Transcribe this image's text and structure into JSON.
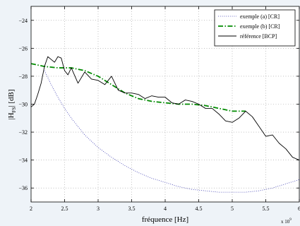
{
  "chart_data": {
    "type": "line",
    "xlabel": "fréquence [Hz]",
    "ylabel": "|H_FS| [dB]",
    "ylabel_main": "|H",
    "ylabel_sub": "FS",
    "ylabel_unit": "| [dB]",
    "x_exponent_label": "x 10",
    "x_exponent_power": "9",
    "xlim": [
      2,
      6
    ],
    "ylim": [
      -37,
      -23
    ],
    "grid": true,
    "legend_position": "top-right",
    "xticks": [
      {
        "value": 2,
        "label": "2"
      },
      {
        "value": 2.5,
        "label": "2.5"
      },
      {
        "value": 3,
        "label": "3"
      },
      {
        "value": 3.5,
        "label": "3.5"
      },
      {
        "value": 4,
        "label": "4"
      },
      {
        "value": 4.5,
        "label": "4.5"
      },
      {
        "value": 5,
        "label": "5"
      },
      {
        "value": 5.5,
        "label": "5.5"
      },
      {
        "value": 6,
        "label": "6"
      }
    ],
    "yticks": [
      {
        "value": -36,
        "label": "−36"
      },
      {
        "value": -34,
        "label": "−34"
      },
      {
        "value": -32,
        "label": "−32"
      },
      {
        "value": -30,
        "label": "−30"
      },
      {
        "value": -28,
        "label": "−28"
      },
      {
        "value": -26,
        "label": "−26"
      },
      {
        "value": -24,
        "label": "−24"
      }
    ],
    "series": [
      {
        "name": "exemple (a) [CR]",
        "color": "#3a3ab0",
        "style": "dotted",
        "x": [
          2.2,
          2.3,
          2.4,
          2.5,
          2.6,
          2.8,
          3.0,
          3.2,
          3.4,
          3.6,
          3.8,
          4.0,
          4.2,
          4.4,
          4.6,
          4.8,
          5.0,
          5.2,
          5.4,
          5.6,
          5.8,
          6.0
        ],
        "y": [
          -27.6,
          -28.6,
          -29.5,
          -30.3,
          -31.0,
          -32.2,
          -33.1,
          -33.8,
          -34.4,
          -34.9,
          -35.3,
          -35.6,
          -35.9,
          -36.1,
          -36.2,
          -36.3,
          -36.3,
          -36.3,
          -36.2,
          -36.0,
          -35.7,
          -35.4
        ]
      },
      {
        "name": "exemple (b) [CR]",
        "color": "#008a00",
        "style": "dashdot",
        "x": [
          2.0,
          2.2,
          2.4,
          2.6,
          2.8,
          3.0,
          3.2,
          3.4,
          3.6,
          3.8,
          4.0,
          4.2,
          4.4,
          4.6,
          4.8,
          5.0,
          5.1,
          5.2
        ],
        "y": [
          -27.1,
          -27.3,
          -27.4,
          -27.4,
          -27.6,
          -28.0,
          -28.6,
          -29.2,
          -29.6,
          -29.8,
          -29.9,
          -30.0,
          -30.0,
          -30.1,
          -30.3,
          -30.5,
          -30.5,
          -30.5
        ]
      },
      {
        "name": "référence [BCP]",
        "color": "#000000",
        "style": "solid",
        "x": [
          2.0,
          2.05,
          2.1,
          2.15,
          2.2,
          2.25,
          2.3,
          2.35,
          2.4,
          2.45,
          2.5,
          2.55,
          2.6,
          2.7,
          2.8,
          2.9,
          3.0,
          3.1,
          3.2,
          3.3,
          3.4,
          3.5,
          3.6,
          3.7,
          3.8,
          3.9,
          4.0,
          4.1,
          4.2,
          4.3,
          4.4,
          4.5,
          4.6,
          4.7,
          4.8,
          4.9,
          5.0,
          5.1,
          5.2,
          5.3,
          5.4,
          5.5,
          5.6,
          5.7,
          5.8,
          5.9,
          6.0
        ],
        "y": [
          -30.2,
          -30.0,
          -29.3,
          -28.5,
          -27.3,
          -26.6,
          -26.8,
          -27.0,
          -26.6,
          -26.7,
          -27.6,
          -27.9,
          -27.4,
          -28.5,
          -27.7,
          -28.2,
          -28.3,
          -28.6,
          -28.0,
          -29.0,
          -29.2,
          -29.2,
          -29.3,
          -29.6,
          -29.4,
          -29.5,
          -29.5,
          -29.9,
          -30.0,
          -29.7,
          -29.8,
          -30.0,
          -30.3,
          -30.3,
          -30.7,
          -31.2,
          -31.3,
          -31.0,
          -30.5,
          -30.9,
          -31.6,
          -32.3,
          -32.2,
          -32.8,
          -33.2,
          -33.8,
          -34.0
        ]
      }
    ]
  }
}
